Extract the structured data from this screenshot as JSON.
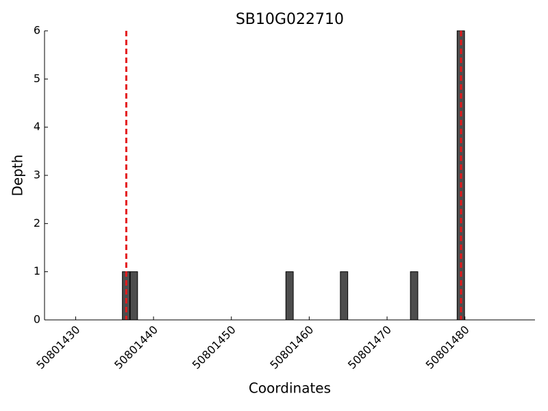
{
  "chart_data": {
    "type": "bar",
    "title": "SB10G022710",
    "x_label": "Coordinates",
    "y_label": "Depth",
    "x": [
      50801436,
      50801437,
      50801457,
      50801464,
      50801473,
      50801479
    ],
    "values": [
      1,
      1,
      1,
      1,
      1,
      6
    ],
    "color": "#4d4d4d",
    "xlim": [
      50801426,
      50801489
    ],
    "xticks": [
      50801430,
      50801440,
      50801450,
      50801460,
      50801470,
      50801480
    ],
    "ylim": [
      0,
      6
    ],
    "yticks": [
      0,
      1,
      2,
      3,
      4,
      5,
      6
    ],
    "vlines": [
      50801436.5,
      50801479.5
    ],
    "vline_color": "#e41a1c"
  }
}
